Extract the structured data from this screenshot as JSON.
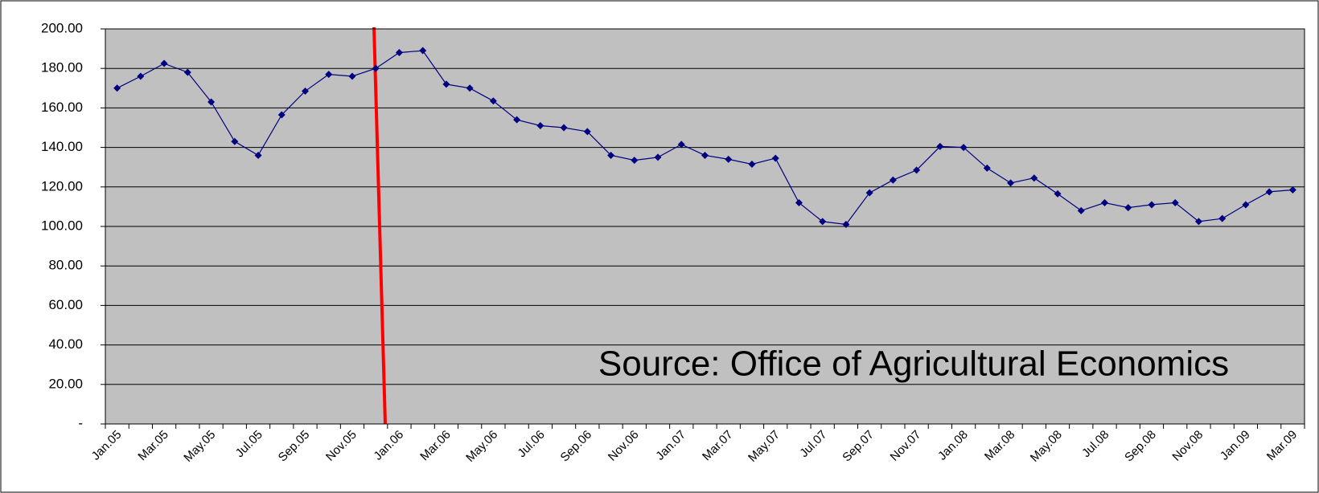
{
  "chart_data": {
    "type": "line",
    "annotation": "Source: Office of Agricultural Economics",
    "categories": [
      "Jan.05",
      null,
      "Mar.05",
      null,
      "May.05",
      null,
      "Jul.05",
      null,
      "Sep.05",
      null,
      "Nov.05",
      null,
      "Jan.06",
      null,
      "Mar.06",
      null,
      "May.06",
      null,
      "Jul.06",
      null,
      "Sep.06",
      null,
      "Nov.06",
      null,
      "Jan.07",
      null,
      "Mar.07",
      null,
      "May.07",
      null,
      "Jul.07",
      null,
      "Sep.07",
      null,
      "Nov.07",
      null,
      "Jan.08",
      null,
      "Mar.08",
      null,
      "May.08",
      null,
      "Jul.08",
      null,
      "Sep.08",
      null,
      "Nov.08",
      null,
      "Jan.09",
      null,
      "Mar.09"
    ],
    "series": [
      {
        "color": "#000080",
        "values": [
          170,
          176,
          182.5,
          178,
          163,
          143,
          136,
          156.5,
          168.5,
          177,
          176,
          180,
          188,
          189,
          172,
          170,
          163.5,
          154,
          151,
          150,
          148,
          136,
          133.5,
          135,
          141.5,
          136,
          134,
          131.5,
          134.5,
          112,
          102.5,
          101,
          117,
          123.5,
          128.5,
          140.5,
          140,
          129.5,
          122,
          124.5,
          116.5,
          108,
          112,
          109.5,
          111,
          112,
          102.5,
          104,
          111,
          117.5,
          118.5
        ]
      }
    ],
    "ylim": [
      0,
      200
    ],
    "yticks": [
      {
        "value": 0,
        "label": "-"
      },
      {
        "value": 20,
        "label": "20.00"
      },
      {
        "value": 40,
        "label": "40.00"
      },
      {
        "value": 60,
        "label": "60.00"
      },
      {
        "value": 80,
        "label": "80.00"
      },
      {
        "value": 100,
        "label": "100.00"
      },
      {
        "value": 120,
        "label": "120.00"
      },
      {
        "value": 140,
        "label": "140.00"
      },
      {
        "value": 160,
        "label": "160.00"
      },
      {
        "value": 180,
        "label": "180.00"
      },
      {
        "value": 200,
        "label": "200.00"
      }
    ],
    "grid": true
  }
}
